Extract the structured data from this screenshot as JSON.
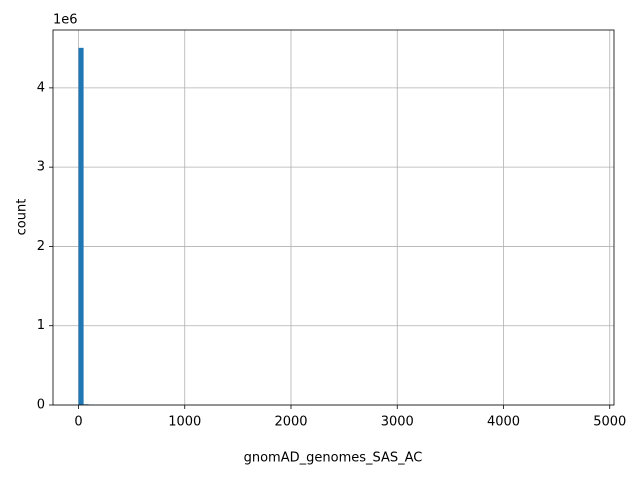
{
  "chart_data": {
    "type": "histogram",
    "xlabel": "gnomAD_genomes_SAS_AC",
    "ylabel": "count",
    "y_offset_text": "1e6",
    "bins": [
      0,
      48,
      96,
      144,
      192,
      240,
      288,
      336,
      384,
      432,
      480,
      528,
      576,
      624,
      672,
      720,
      768,
      816,
      864,
      912,
      960,
      1008,
      1056,
      1104,
      1152,
      1200,
      1248,
      1296,
      1344,
      1392,
      1440,
      1488,
      1536,
      1584,
      1632,
      1680,
      1728,
      1776,
      1824,
      1872,
      1920,
      1968,
      2016,
      2064,
      2112,
      2160,
      2208,
      2256,
      2304,
      2352,
      2400,
      2448,
      2496,
      2544,
      2592,
      2640,
      2688,
      2736,
      2784,
      2832,
      2880,
      2928,
      2976,
      3024,
      3072,
      3120,
      3168,
      3216,
      3264,
      3312,
      3360,
      3408,
      3456,
      3504,
      3552,
      3600,
      3648,
      3696,
      3744,
      3792,
      3840,
      3888,
      3936,
      3984,
      4032,
      4080,
      4128,
      4176,
      4224,
      4272,
      4320,
      4368,
      4416,
      4464,
      4512,
      4560,
      4608,
      4656,
      4704,
      4752,
      4800
    ],
    "values": [
      4505000,
      9000,
      3000,
      1500,
      800,
      0,
      0,
      0,
      0,
      0,
      0,
      0,
      0,
      0,
      0,
      0,
      0,
      0,
      0,
      0,
      0,
      0,
      0,
      0,
      0,
      0,
      0,
      0,
      0,
      0,
      0,
      0,
      0,
      0,
      0,
      0,
      0,
      0,
      0,
      0,
      0,
      0,
      0,
      0,
      0,
      0,
      0,
      0,
      0,
      0,
      0,
      0,
      0,
      0,
      0,
      0,
      0,
      0,
      0,
      0,
      0,
      0,
      0,
      0,
      0,
      0,
      0,
      0,
      0,
      0,
      0,
      0,
      0,
      0,
      0,
      0,
      0,
      0,
      0,
      0,
      0,
      0,
      0,
      0,
      0,
      0,
      0,
      0,
      0,
      0,
      0,
      0,
      0,
      0,
      0,
      0,
      0,
      0,
      0,
      0
    ],
    "color": "#1f77b4",
    "xlim": [
      -240,
      5040
    ],
    "xticks": [
      0,
      1000,
      2000,
      3000,
      4000,
      5000
    ],
    "ylim": [
      0,
      4730000
    ],
    "yticks": [
      {
        "value": 0,
        "label": "0"
      },
      {
        "value": 1000000,
        "label": "1"
      },
      {
        "value": 2000000,
        "label": "2"
      },
      {
        "value": 3000000,
        "label": "3"
      },
      {
        "value": 4000000,
        "label": "4"
      }
    ],
    "grid": true
  }
}
